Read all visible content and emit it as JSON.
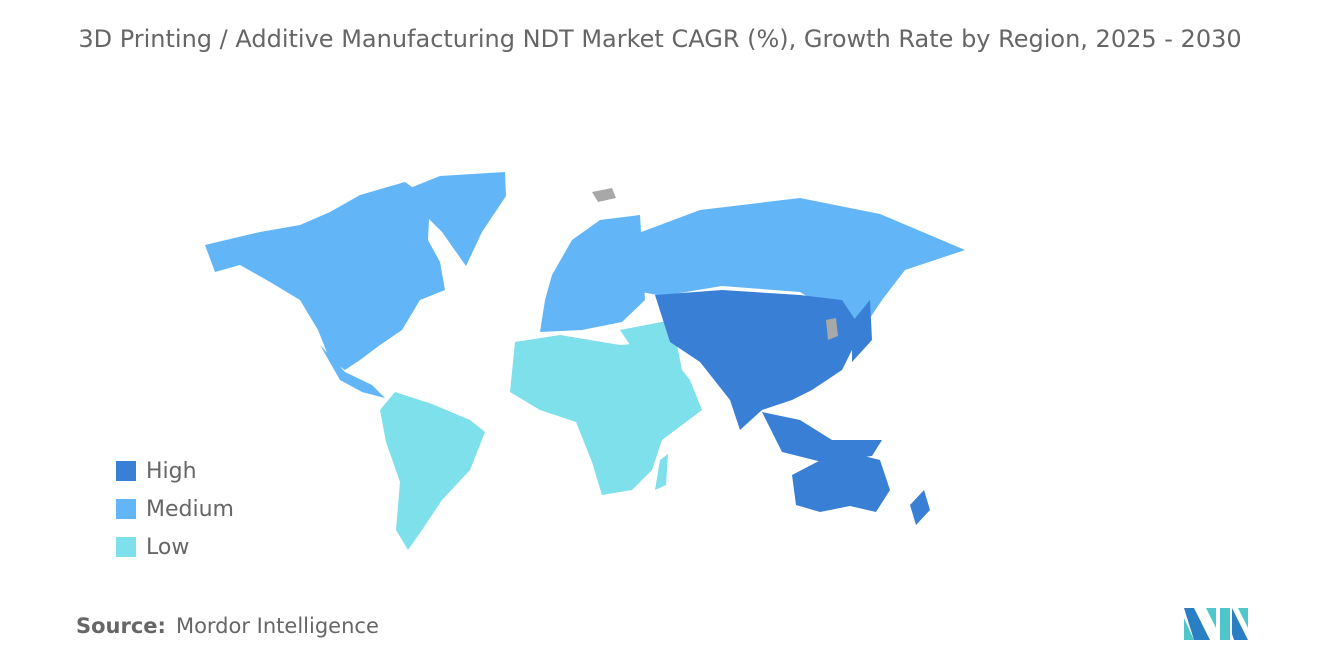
{
  "title": "3D Printing / Additive Manufacturing NDT Market CAGR (%), Growth Rate by Region, 2025 - 2030",
  "legend": [
    {
      "label": "High",
      "color": "#3a7fd6"
    },
    {
      "label": "Medium",
      "color": "#62b6f8"
    },
    {
      "label": "Low",
      "color": "#7de0ea"
    }
  ],
  "no_data_color": "#a8a8a8",
  "regions": [
    {
      "region": "North America",
      "level": "Medium"
    },
    {
      "region": "Europe",
      "level": "Medium"
    },
    {
      "region": "Asia-Pacific",
      "level": "High"
    },
    {
      "region": "South America",
      "level": "Low"
    },
    {
      "region": "Middle East and Africa",
      "level": "Low"
    }
  ],
  "source": {
    "label": "Source:",
    "value": "Mordor Intelligence"
  }
}
